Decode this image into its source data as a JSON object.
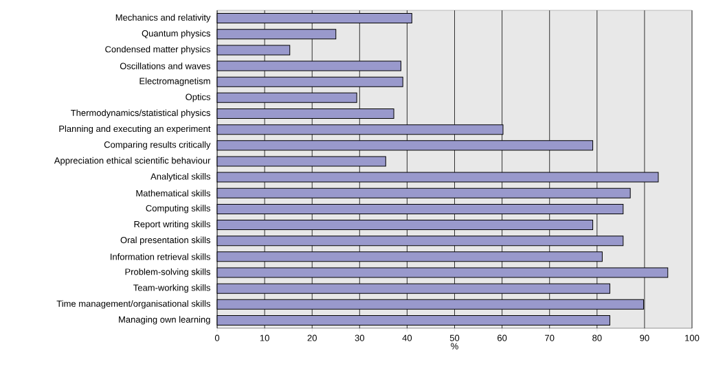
{
  "chart_data": {
    "type": "bar",
    "orientation": "horizontal",
    "xlabel": "%",
    "categories": [
      "Mechanics and relativity",
      "Quantum physics",
      "Condensed matter physics",
      "Oscillations and waves",
      "Electromagnetism",
      "Optics",
      "Thermodynamics/statistical physics",
      "Planning and executing an experiment",
      "Comparing results critically",
      "Appreciation ethical scientific behaviour",
      "Analytical skills",
      "Mathematical skills",
      "Computing skills",
      "Report writing skills",
      "Oral presentation skills",
      "Information retrieval skills",
      "Problem-solving skills",
      "Team-working skills",
      "Time management/organisational skills",
      "Managing own learning"
    ],
    "values": [
      41,
      25,
      15.3,
      38.7,
      39.1,
      29.4,
      37.2,
      60.2,
      79.1,
      35.5,
      92.9,
      87.0,
      85.5,
      79.1,
      85.5,
      81.1,
      94.9,
      82.7,
      89.8,
      82.7
    ],
    "color": "#9999cc",
    "xlim": [
      0,
      100
    ],
    "xticks": [
      0,
      10,
      20,
      30,
      40,
      50,
      60,
      70,
      80,
      90,
      100
    ],
    "grid": "x"
  }
}
